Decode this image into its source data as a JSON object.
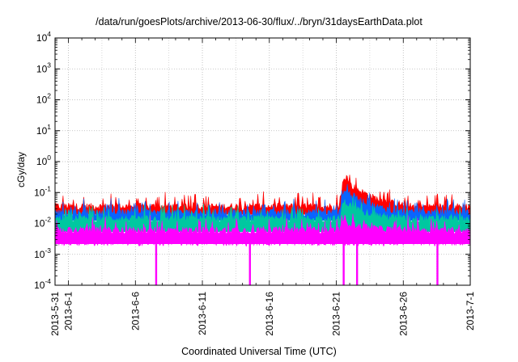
{
  "chart_data": {
    "type": "area",
    "title": "/data/run/goesPlots/archive/2013-06-30/flux/../bryn/31daysEarthData.plot",
    "xlabel": "Coordinated Universal Time (UTC)",
    "ylabel": "cGy/day",
    "yscale": "log",
    "ylim": [
      0.0001,
      10000
    ],
    "y_ticks": [
      {
        "base": "10",
        "exp": "-4",
        "value": 0.0001
      },
      {
        "base": "10",
        "exp": "-3",
        "value": 0.001
      },
      {
        "base": "10",
        "exp": "-2",
        "value": 0.01
      },
      {
        "base": "10",
        "exp": "-1",
        "value": 0.1
      },
      {
        "base": "10",
        "exp": "0",
        "value": 1
      },
      {
        "base": "10",
        "exp": "1",
        "value": 10
      },
      {
        "base": "10",
        "exp": "2",
        "value": 100
      },
      {
        "base": "10",
        "exp": "3",
        "value": 1000
      },
      {
        "base": "10",
        "exp": "4",
        "value": 10000
      }
    ],
    "xlim": [
      "2013-05-31",
      "2013-07-01"
    ],
    "x_ticks": [
      {
        "label": "2013-5-31",
        "day": 0
      },
      {
        "label": "2013-6-1",
        "day": 1
      },
      {
        "label": "2013-6-6",
        "day": 6
      },
      {
        "label": "2013-6-11",
        "day": 11
      },
      {
        "label": "2013-6-16",
        "day": 16
      },
      {
        "label": "2013-6-21",
        "day": 21
      },
      {
        "label": "2013-6-26",
        "day": 26
      },
      {
        "label": "2013-7-1",
        "day": 31
      }
    ],
    "grid": true,
    "series": [
      {
        "color": "#ff0000",
        "baseline": 0.035,
        "event_peak": 0.25
      },
      {
        "color": "#0a64ff",
        "baseline": 0.022,
        "event_peak": 0.12
      },
      {
        "color": "#00c8a0",
        "baseline": 0.014,
        "event_peak": 0.05
      },
      {
        "color": "#ff00ff",
        "baseline": 0.006,
        "event_peak": 0.012
      }
    ],
    "event": {
      "start": "2013-06-21",
      "end": "2013-06-25"
    },
    "dropouts": [
      "2013-06-07",
      "2013-06-14",
      "2013-06-21",
      "2013-06-22",
      "2013-06-28"
    ]
  }
}
